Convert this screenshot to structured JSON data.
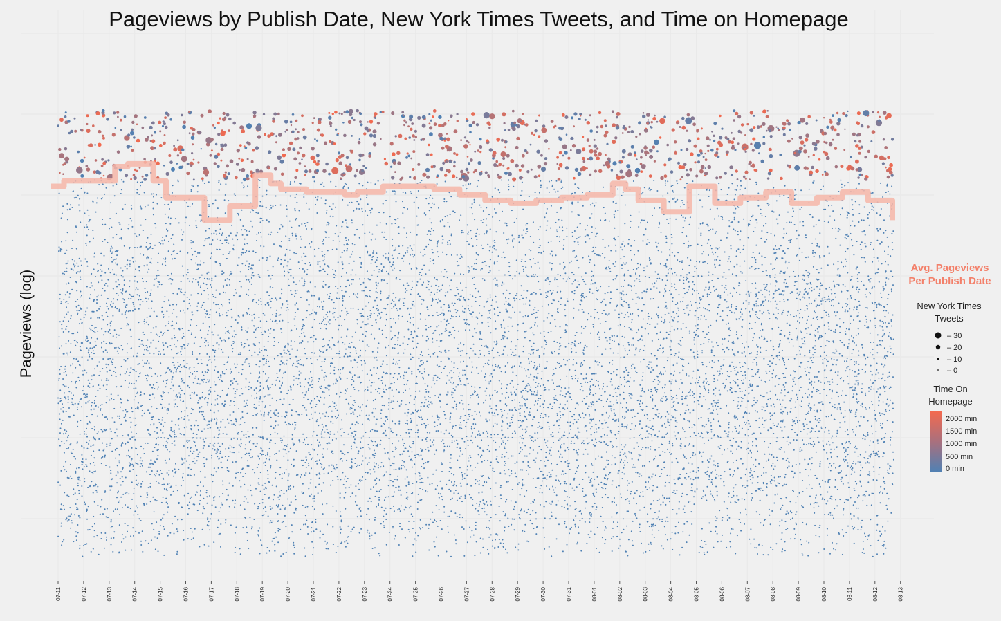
{
  "chart_data": {
    "type": "scatter",
    "title": "Pageviews by Publish Date, New York Times Tweets, and Time on Homepage",
    "xlabel": "",
    "ylabel": "Pageviews (log)",
    "x_tick_labels": [
      "07-11",
      "07-12",
      "07-13",
      "07-14",
      "07-15",
      "07-16",
      "07-17",
      "07-18",
      "07-19",
      "07-20",
      "07-21",
      "07-22",
      "07-23",
      "07-24",
      "07-25",
      "07-26",
      "07-27",
      "07-28",
      "07-29",
      "07-30",
      "07-31",
      "08-01",
      "08-02",
      "08-03",
      "08-04",
      "08-05",
      "08-06",
      "08-07",
      "08-08",
      "08-09",
      "08-10",
      "08-11",
      "08-12",
      "08-13"
    ],
    "y_scale": "log",
    "grid": true,
    "avg_series": {
      "name": "Avg. Pageviews Per Publish Date",
      "label_lines": [
        "Avg. Pageviews",
        "Per Publish Date"
      ],
      "color": "#f6b6a8",
      "relative_level": [
        0.7,
        0.71,
        0.71,
        0.71,
        0.735,
        0.74,
        0.71,
        0.68,
        0.68,
        0.64,
        0.665,
        0.72,
        0.705,
        0.695,
        0.69,
        0.69,
        0.685,
        0.69,
        0.7,
        0.7,
        0.695,
        0.685,
        0.675,
        0.67,
        0.675,
        0.68,
        0.685,
        0.705,
        0.695,
        0.675,
        0.655,
        0.7,
        0.67,
        0.68,
        0.69,
        0.67,
        0.68,
        0.69,
        0.675,
        0.64
      ],
      "step_days": [
        0,
        0.5,
        1.5,
        2,
        2.5,
        3,
        4,
        4.5,
        5.5,
        6,
        7,
        8,
        8.6,
        9,
        10,
        11,
        11.5,
        12,
        13,
        14,
        15,
        16,
        17,
        18,
        19,
        20,
        21,
        22,
        22.5,
        23,
        24,
        25,
        26,
        27,
        28,
        29,
        30,
        31,
        32,
        33
      ]
    },
    "size_legend": {
      "title_lines": [
        "New York Times",
        "Tweets"
      ],
      "values": [
        30,
        20,
        10,
        0
      ],
      "labels": [
        "– 30",
        "– 20",
        "– 10",
        "– 0"
      ]
    },
    "color_legend": {
      "title_lines": [
        "Time On",
        "Homepage"
      ],
      "labels": [
        "2000 min",
        "1500 min",
        "1000 min",
        "500 min",
        "0 min"
      ],
      "low_color": "#4f81b4",
      "high_color": "#f36a4f"
    },
    "point_color": "#4f81b4"
  }
}
